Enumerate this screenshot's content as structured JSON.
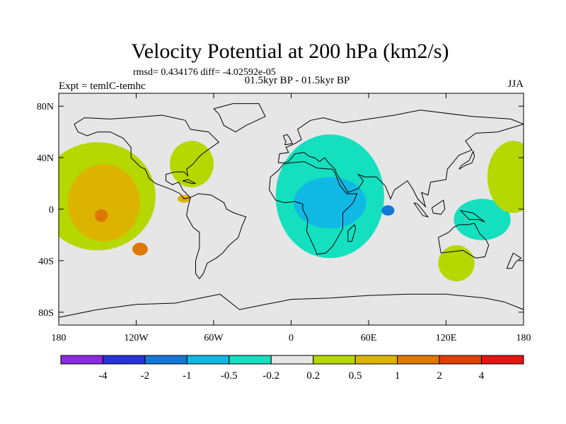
{
  "chart_data": {
    "type": "heatmap",
    "title": "Velocity Potential at 200 hPa (km2/s)",
    "stats_label": "rmsd= 0.434176 diff= -4.02592e-05",
    "period_label": "01.5kyr BP - 01.5kyr BP",
    "experiment_label": "Expt = temlC-temhc",
    "season_label": "JJA",
    "xlim": [
      -180,
      180
    ],
    "ylim": [
      -90,
      90
    ],
    "x_ticks": [
      {
        "value": -180,
        "label": "180"
      },
      {
        "value": -120,
        "label": "120W"
      },
      {
        "value": -60,
        "label": "60W"
      },
      {
        "value": 0,
        "label": "0"
      },
      {
        "value": 60,
        "label": "60E"
      },
      {
        "value": 120,
        "label": "120E"
      },
      {
        "value": 180,
        "label": "180"
      }
    ],
    "y_ticks": [
      {
        "value": 80,
        "label": "80N"
      },
      {
        "value": 40,
        "label": "40N"
      },
      {
        "value": 0,
        "label": "0"
      },
      {
        "value": -40,
        "label": "40S"
      },
      {
        "value": -80,
        "label": "80S"
      }
    ],
    "contour_levels": [
      "-4",
      "-2",
      "-1",
      "-0.5",
      "-0.2",
      "0.2",
      "0.5",
      "1",
      "2",
      "4"
    ],
    "colorbar_colors": [
      "#8a2be2",
      "#2832d8",
      "#1478d6",
      "#10b8e4",
      "#14e0c0",
      "#e6e6e6",
      "#b4d800",
      "#dcb400",
      "#dc7800",
      "#e04000",
      "#e61414"
    ],
    "regions": [
      {
        "name": "pacific-positive",
        "level_index": 6,
        "lon": -150,
        "lat": 10,
        "lon_radius": 45,
        "lat_radius": 42
      },
      {
        "name": "pacific-positive-core",
        "level_index": 7,
        "lon": -145,
        "lat": 5,
        "lon_radius": 28,
        "lat_radius": 30
      },
      {
        "name": "pacific-positive-peak-north",
        "level_index": 8,
        "lon": -147,
        "lat": -5,
        "lon_radius": 5,
        "lat_radius": 5
      },
      {
        "name": "pacific-positive-peak-south",
        "level_index": 8,
        "lon": -117,
        "lat": -31,
        "lon_radius": 6,
        "lat_radius": 5
      },
      {
        "name": "atlantic-north-positive",
        "level_index": 6,
        "lon": -77,
        "lat": 35,
        "lon_radius": 17,
        "lat_radius": 18
      },
      {
        "name": "gulf-positive",
        "level_index": 7,
        "lon": -83,
        "lat": 8,
        "lon_radius": 5,
        "lat_radius": 3
      },
      {
        "name": "africa-negative",
        "level_index": 4,
        "lon": 30,
        "lat": 10,
        "lon_radius": 42,
        "lat_radius": 48
      },
      {
        "name": "africa-negative-core",
        "level_index": 3,
        "lon": 30,
        "lat": 5,
        "lon_radius": 28,
        "lat_radius": 20
      },
      {
        "name": "indian-ocean-min",
        "level_index": 2,
        "lon": 75,
        "lat": -1,
        "lon_radius": 5,
        "lat_radius": 4
      },
      {
        "name": "west-pacific-negative",
        "level_index": 4,
        "lon": 148,
        "lat": -8,
        "lon_radius": 22,
        "lat_radius": 16
      },
      {
        "name": "australia-positive",
        "level_index": 6,
        "lon": 128,
        "lat": -42,
        "lon_radius": 14,
        "lat_radius": 14
      },
      {
        "name": "east-pacific-positive",
        "level_index": 6,
        "lon": 172,
        "lat": 25,
        "lon_radius": 20,
        "lat_radius": 28
      }
    ]
  }
}
